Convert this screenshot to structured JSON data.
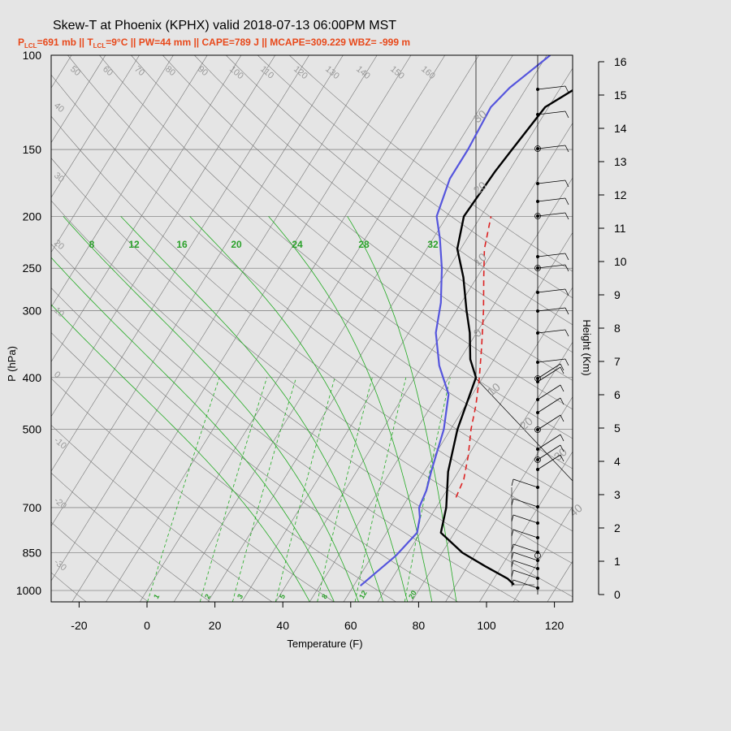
{
  "title": "Skew-T at Phoenix (KPHX) valid 2018-07-13 06:00PM MST",
  "subtitle": {
    "plcl_p": "P",
    "plcl_sub": "LCL",
    "plcl_val": "=691 mb || T",
    "tlcl_sub": "LCL",
    "rest": "=9°C || PW=44 mm || CAPE=789 J || MCAPE=309.229 WBZ= -999 m"
  },
  "colors": {
    "temperature": "#000000",
    "dewpoint": "#5555dd",
    "parcel": "#dd2222",
    "mixing_ratio": "#22aa22",
    "isotherms": "#9a9a9a",
    "background": "#e5e5e5"
  },
  "chart_data": {
    "type": "skew-t",
    "xlabel": "Temperature (F)",
    "ylabel": "P (hPa)",
    "right_label": "Height (Km)",
    "xlim": [
      -28,
      126
    ],
    "ylim": [
      1050,
      100
    ],
    "x_ticks": [
      -20,
      0,
      20,
      40,
      60,
      80,
      100,
      120
    ],
    "p_ticks": [
      100,
      150,
      200,
      250,
      300,
      400,
      500,
      700,
      850,
      1000
    ],
    "height_ticks": [
      0,
      1,
      2,
      3,
      4,
      5,
      6,
      7,
      8,
      9,
      10,
      11,
      12,
      13,
      14,
      15,
      16
    ],
    "isotherm_labels_left": [
      40,
      30,
      20,
      10,
      0,
      -10,
      -20,
      -30
    ],
    "isotherm_labels_top": [
      50,
      60,
      70,
      80,
      90,
      100,
      110,
      120,
      130,
      140,
      150,
      160
    ],
    "inner_box_labels": [
      30,
      20,
      10,
      0
    ],
    "outer_labels": [
      10,
      20,
      30,
      40
    ],
    "mixing_ratio_top_labels": [
      8,
      12,
      16,
      20,
      24,
      28,
      32
    ],
    "mixing_ratio_bottom_labels": [
      1,
      2,
      3,
      5,
      8,
      12,
      20
    ],
    "temperature_profile": [
      [
        107,
        975
      ],
      [
        104,
        950
      ],
      [
        95,
        900
      ],
      [
        86,
        850
      ],
      [
        76,
        780
      ],
      [
        73,
        700
      ],
      [
        67,
        600
      ],
      [
        62,
        500
      ],
      [
        58,
        400
      ],
      [
        53,
        370
      ],
      [
        48,
        330
      ],
      [
        43,
        300
      ],
      [
        36,
        260
      ],
      [
        29,
        230
      ],
      [
        25,
        200
      ],
      [
        26,
        165
      ],
      [
        27,
        150
      ],
      [
        29,
        125
      ],
      [
        36,
        113
      ],
      [
        42,
        100
      ]
    ],
    "dewpoint_profile": [
      [
        62,
        980
      ],
      [
        67,
        860
      ],
      [
        69,
        780
      ],
      [
        67,
        730
      ],
      [
        65,
        700
      ],
      [
        64,
        650
      ],
      [
        62,
        600
      ],
      [
        58,
        500
      ],
      [
        53,
        430
      ],
      [
        45,
        380
      ],
      [
        38,
        330
      ],
      [
        34,
        290
      ],
      [
        28,
        250
      ],
      [
        22,
        220
      ],
      [
        17,
        200
      ],
      [
        14,
        170
      ],
      [
        14,
        150
      ],
      [
        13,
        125
      ],
      [
        15,
        115
      ],
      [
        21,
        100
      ]
    ],
    "parcel_profile": [
      [
        74,
        670
      ],
      [
        73,
        620
      ],
      [
        70,
        560
      ],
      [
        66,
        500
      ],
      [
        63,
        450
      ],
      [
        59,
        400
      ],
      [
        54,
        350
      ],
      [
        48,
        300
      ],
      [
        42,
        260
      ],
      [
        37,
        230
      ],
      [
        33,
        200
      ]
    ]
  }
}
